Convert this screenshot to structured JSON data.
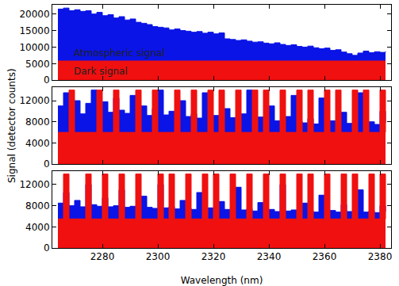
{
  "chart_data": [
    {
      "type": "area",
      "line_style": "step",
      "tick_labels": "y",
      "xlim": [
        2262,
        2384
      ],
      "xticks": [
        2280,
        2300,
        2320,
        2340,
        2360,
        2380
      ],
      "ylim": [
        0,
        22800
      ],
      "yticks": [
        0,
        5000,
        10000,
        15000,
        20000
      ],
      "annotations": [
        {
          "text": "Atmospheric signal",
          "x": 2269,
          "y": 8200
        },
        {
          "text": "Dark signal",
          "x": 2269,
          "y": 2700
        }
      ],
      "x": [
        2264,
        2266,
        2268,
        2270,
        2272,
        2274,
        2276,
        2278,
        2280,
        2282,
        2284,
        2286,
        2288,
        2290,
        2292,
        2294,
        2296,
        2298,
        2300,
        2302,
        2304,
        2306,
        2308,
        2310,
        2312,
        2314,
        2316,
        2318,
        2320,
        2322,
        2324,
        2326,
        2328,
        2330,
        2332,
        2334,
        2336,
        2338,
        2340,
        2342,
        2344,
        2346,
        2348,
        2350,
        2352,
        2354,
        2356,
        2358,
        2360,
        2362,
        2364,
        2366,
        2368,
        2370,
        2372,
        2374,
        2376,
        2378,
        2380,
        2382
      ],
      "series": [
        {
          "color": "#0a14e6",
          "values": [
            21500,
            21800,
            21000,
            21300,
            20800,
            21000,
            20000,
            20500,
            19500,
            19800,
            18800,
            19200,
            18200,
            18500,
            17500,
            17200,
            16800,
            16200,
            16000,
            15800,
            15200,
            15500,
            15000,
            14800,
            14500,
            14700,
            14200,
            14500,
            14000,
            14300,
            12500,
            12300,
            12000,
            12200,
            11800,
            11500,
            11600,
            11200,
            11000,
            11300,
            10800,
            10500,
            10700,
            10200,
            10000,
            10300,
            9800,
            9500,
            9700,
            9000,
            9200,
            8500,
            8000,
            7500,
            8200,
            8800,
            8300,
            8600,
            8400,
            8700
          ]
        },
        {
          "color": "#f01010",
          "values": [
            5800,
            5800,
            5800,
            5800,
            5800,
            5800,
            5800,
            5800,
            5800,
            5800,
            5800,
            5800,
            5800,
            5800,
            5800,
            5800,
            5800,
            5800,
            5800,
            5800,
            5800,
            5800,
            5800,
            5800,
            5800,
            5800,
            5800,
            5800,
            5800,
            5800,
            5800,
            5800,
            5800,
            5800,
            5800,
            5800,
            5800,
            5800,
            5800,
            5800,
            5800,
            5800,
            5800,
            5800,
            5800,
            5800,
            5800,
            5800,
            5800,
            5800,
            5800,
            5800,
            5800,
            5800,
            5800,
            5800,
            5800,
            5800,
            5800,
            5800
          ]
        }
      ]
    },
    {
      "type": "area",
      "line_style": "step",
      "tick_labels": "y",
      "ylabel": "Signal (detector counts)",
      "xlim": [
        2262,
        2384
      ],
      "xticks": [
        2280,
        2300,
        2320,
        2340,
        2360,
        2380
      ],
      "ylim": [
        0,
        14500
      ],
      "yticks": [
        0,
        4000,
        8000,
        12000
      ],
      "x": [
        2264,
        2266,
        2268,
        2270,
        2272,
        2274,
        2276,
        2278,
        2280,
        2282,
        2284,
        2286,
        2288,
        2290,
        2292,
        2294,
        2296,
        2298,
        2300,
        2302,
        2304,
        2306,
        2308,
        2310,
        2312,
        2314,
        2316,
        2318,
        2320,
        2322,
        2324,
        2326,
        2328,
        2330,
        2332,
        2334,
        2336,
        2338,
        2340,
        2342,
        2344,
        2346,
        2348,
        2350,
        2352,
        2354,
        2356,
        2358,
        2360,
        2362,
        2364,
        2366,
        2368,
        2370,
        2372,
        2374,
        2376,
        2378,
        2380,
        2382
      ],
      "series": [
        {
          "color": "#0a14e6",
          "values": [
            11000,
            13500,
            10500,
            12000,
            9500,
            11500,
            14000,
            10000,
            11800,
            9800,
            12500,
            10200,
            9600,
            13000,
            9400,
            11000,
            9200,
            10500,
            14000,
            9300,
            10000,
            8800,
            12000,
            9000,
            9500,
            8700,
            13500,
            8600,
            9200,
            8400,
            10500,
            8800,
            8200,
            9500,
            14000,
            8300,
            8900,
            8000,
            11000,
            8200,
            7900,
            9000,
            13000,
            8100,
            7800,
            8600,
            7600,
            12500,
            7900,
            8200,
            7500,
            9800,
            7700,
            7400,
            13500,
            7600,
            8000,
            7500,
            10000,
            7800
          ]
        },
        {
          "color": "#f01010",
          "values": [
            6000,
            6000,
            14000,
            6000,
            6000,
            6000,
            6000,
            14000,
            6000,
            6000,
            14000,
            6000,
            6000,
            6000,
            14000,
            6000,
            6000,
            14000,
            6000,
            6000,
            6000,
            14000,
            6000,
            6000,
            14000,
            6000,
            6000,
            14000,
            6000,
            14000,
            6000,
            6000,
            14000,
            6000,
            6000,
            14000,
            6000,
            14000,
            6000,
            6000,
            14000,
            6000,
            6000,
            14000,
            6000,
            14000,
            6000,
            6000,
            14000,
            6000,
            14000,
            6000,
            6000,
            14000,
            6000,
            14000,
            6000,
            6000,
            14000,
            6000
          ]
        }
      ]
    },
    {
      "type": "area",
      "line_style": "step",
      "tick_labels": true,
      "xlabel": "Wavelength (nm)",
      "xlim": [
        2262,
        2384
      ],
      "xticks": [
        2280,
        2300,
        2320,
        2340,
        2360,
        2380
      ],
      "ylim": [
        0,
        14500
      ],
      "yticks": [
        0,
        4000,
        8000,
        12000
      ],
      "x": [
        2264,
        2266,
        2268,
        2270,
        2272,
        2274,
        2276,
        2278,
        2280,
        2282,
        2284,
        2286,
        2288,
        2290,
        2292,
        2294,
        2296,
        2298,
        2300,
        2302,
        2304,
        2306,
        2308,
        2310,
        2312,
        2314,
        2316,
        2318,
        2320,
        2322,
        2324,
        2326,
        2328,
        2330,
        2332,
        2334,
        2336,
        2338,
        2340,
        2342,
        2344,
        2346,
        2348,
        2350,
        2352,
        2354,
        2356,
        2358,
        2360,
        2362,
        2364,
        2366,
        2368,
        2370,
        2372,
        2374,
        2376,
        2378,
        2380,
        2382
      ],
      "series": [
        {
          "color": "#0a14e6",
          "values": [
            8500,
            10500,
            8000,
            9000,
            7800,
            12000,
            8200,
            7900,
            9500,
            7800,
            8000,
            11000,
            7700,
            7900,
            7600,
            9800,
            7700,
            7500,
            12000,
            7600,
            7800,
            7400,
            9000,
            7500,
            7300,
            10500,
            7400,
            7600,
            7200,
            8800,
            7300,
            7100,
            11500,
            7200,
            7400,
            7000,
            8600,
            7100,
            7300,
            6900,
            12000,
            7000,
            7200,
            6900,
            8500,
            7000,
            6800,
            10000,
            6900,
            7100,
            6800,
            8200,
            6900,
            6700,
            11000,
            6800,
            7000,
            6700,
            8000,
            6900
          ]
        },
        {
          "color": "#f01010",
          "values": [
            5500,
            14000,
            5500,
            5500,
            5500,
            14000,
            5500,
            5500,
            14000,
            5500,
            5500,
            14000,
            5500,
            5500,
            14000,
            5500,
            5500,
            5500,
            14000,
            5500,
            14000,
            5500,
            5500,
            14000,
            5500,
            5500,
            14000,
            5500,
            14000,
            5500,
            5500,
            14000,
            5500,
            5500,
            14000,
            5500,
            5500,
            14000,
            5500,
            5500,
            14000,
            5500,
            5500,
            14000,
            5500,
            14000,
            5500,
            5500,
            14000,
            5500,
            5500,
            14000,
            5500,
            14000,
            5500,
            5500,
            14000,
            5500,
            14000,
            5500
          ]
        }
      ]
    }
  ]
}
